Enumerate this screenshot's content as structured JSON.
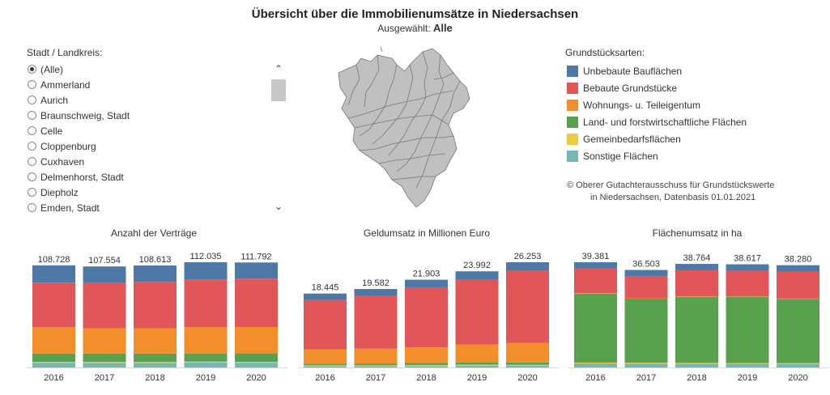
{
  "header": {
    "title": "Übersicht über die Immobilienumsätze in Niedersachsen",
    "selected_prefix": "Ausgewählt:",
    "selected_value": "Alle"
  },
  "filter": {
    "title": "Stadt / Landkreis:",
    "items": [
      "(Alle)",
      "Ammerland",
      "Aurich",
      "Braunschweig, Stadt",
      "Celle",
      "Cloppenburg",
      "Cuxhaven",
      "Delmenhorst, Stadt",
      "Diepholz",
      "Emden, Stadt"
    ],
    "selected": "(Alle)",
    "scroll_up_icon": "chevron-up-icon",
    "scroll_down_icon": "chevron-down-icon"
  },
  "map": {
    "fill_color": "#c0c0c0",
    "stroke_color": "#777777"
  },
  "legend": {
    "title": "Grundstücksarten:",
    "items": [
      {
        "label": "Unbebaute Bauflächen",
        "color": "#4e79a7"
      },
      {
        "label": "Bebaute Grundstücke",
        "color": "#e15759"
      },
      {
        "label": "Wohnungs- u. Teileigentum",
        "color": "#f28e2b"
      },
      {
        "label": "Land- und forstwirtschaftliche Flächen",
        "color": "#59a14f"
      },
      {
        "label": "Gemeinbedarfsflächen",
        "color": "#edc948"
      },
      {
        "label": "Sonstige Flächen",
        "color": "#76b7b2"
      }
    ]
  },
  "copyright": {
    "line1": "© Oberer Gutachterausschuss für Grundstückswerte",
    "line2": "in Niedersachsen,  Datenbasis 01.01.2021"
  },
  "chart_data": [
    {
      "type": "bar",
      "title": "Anzahl der Verträge",
      "categories": [
        "2016",
        "2017",
        "2018",
        "2019",
        "2020"
      ],
      "total_labels": [
        "108.728",
        "107.554",
        "108.613",
        "112.035",
        "111.792"
      ],
      "totals": [
        108728,
        107554,
        108613,
        112035,
        111792
      ],
      "ylim": [
        0,
        112035
      ],
      "series": [
        {
          "name": "Unbebaute Bauflächen",
          "values": [
            18400,
            17700,
            17500,
            18400,
            17300
          ]
        },
        {
          "name": "Bebaute Grundstücke",
          "values": [
            47500,
            48100,
            49300,
            50700,
            51400
          ]
        },
        {
          "name": "Wohnungs- u. Teileigentum",
          "values": [
            28000,
            26900,
            27000,
            28000,
            28100
          ]
        },
        {
          "name": "Land- und forstwirtschaftliche Flächen",
          "values": [
            8800,
            9000,
            9000,
            8700,
            9000
          ]
        },
        {
          "name": "Gemeinbedarfsflächen",
          "values": [
            1000,
            1000,
            1000,
            900,
            900
          ]
        },
        {
          "name": "Sonstige Flächen",
          "values": [
            5028,
            4854,
            4813,
            5335,
            5092
          ]
        }
      ]
    },
    {
      "type": "bar",
      "title": "Geldumsatz in Millionen Euro",
      "categories": [
        "2016",
        "2017",
        "2018",
        "2019",
        "2020"
      ],
      "total_labels": [
        "18.445",
        "19.582",
        "21.903",
        "23.992",
        "26.253"
      ],
      "totals": [
        18445,
        19582,
        21903,
        23992,
        26253
      ],
      "ylim": [
        0,
        26253
      ],
      "series": [
        {
          "name": "Unbebaute Bauflächen",
          "values": [
            1600,
            1700,
            1900,
            2100,
            2100
          ]
        },
        {
          "name": "Bebaute Grundstücke",
          "values": [
            12300,
            13200,
            15000,
            16200,
            18000
          ]
        },
        {
          "name": "Wohnungs- u. Teileigentum",
          "values": [
            3600,
            3700,
            3900,
            4400,
            4900
          ]
        },
        {
          "name": "Land- und forstwirtschaftliche Flächen",
          "values": [
            400,
            450,
            500,
            600,
            600
          ]
        },
        {
          "name": "Gemeinbedarfsflächen",
          "values": [
            200,
            200,
            250,
            250,
            250
          ]
        },
        {
          "name": "Sonstige Flächen",
          "values": [
            345,
            332,
            353,
            442,
            403
          ]
        }
      ]
    },
    {
      "type": "bar",
      "title": "Flächenumsatz in ha",
      "categories": [
        "2016",
        "2017",
        "2018",
        "2019",
        "2020"
      ],
      "total_labels": [
        "39.381",
        "36.503",
        "38.764",
        "38.617",
        "38.280"
      ],
      "totals": [
        39381,
        36503,
        38764,
        38617,
        38280
      ],
      "ylim": [
        0,
        39381
      ],
      "series": [
        {
          "name": "Unbebaute Bauflächen",
          "values": [
            2400,
            2400,
            2400,
            2400,
            2500
          ]
        },
        {
          "name": "Bebaute Grundstücke",
          "values": [
            9200,
            8200,
            9800,
            9600,
            10000
          ]
        },
        {
          "name": "Wohnungs- u. Teileigentum",
          "values": [
            150,
            150,
            150,
            150,
            150
          ]
        },
        {
          "name": "Land- und forstwirtschaftliche Flächen",
          "values": [
            25800,
            24000,
            24700,
            24800,
            24000
          ]
        },
        {
          "name": "Gemeinbedarfsflächen",
          "values": [
            300,
            300,
            300,
            300,
            300
          ]
        },
        {
          "name": "Sonstige Flächen",
          "values": [
            1531,
            1453,
            1414,
            1367,
            1330
          ]
        }
      ]
    }
  ]
}
